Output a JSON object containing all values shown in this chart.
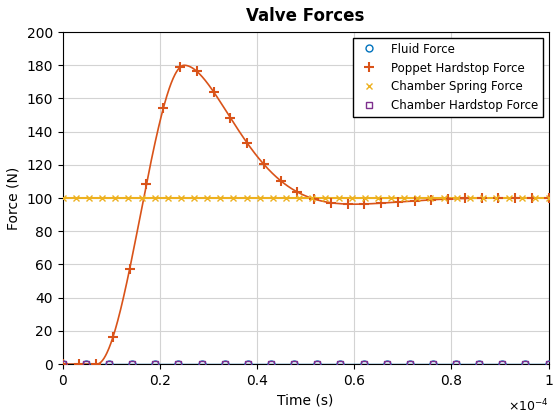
{
  "title": "Valve Forces",
  "xlabel": "Time (s)",
  "ylabel": "Force (N)",
  "xlim": [
    0,
    0.0001
  ],
  "ylim": [
    0,
    200
  ],
  "yticks": [
    0,
    20,
    40,
    60,
    80,
    100,
    120,
    140,
    160,
    180,
    200
  ],
  "xticks_scaled": [
    0,
    0.2,
    0.4,
    0.6,
    0.8,
    1.0
  ],
  "lines": [
    {
      "label": "Fluid Force",
      "color": "#0072BD",
      "linestyle": "-",
      "marker": "o",
      "markerfacecolor": "none",
      "markeredgecolor": "#0072BD",
      "markersize": 5,
      "linewidth": 1.0,
      "type": "flat",
      "value": 0.0,
      "n_markers": 22
    },
    {
      "label": "Poppet Hardstop Force",
      "color": "#D95319",
      "linestyle": "-",
      "marker": "+",
      "markerfacecolor": "#D95319",
      "markeredgecolor": "#D95319",
      "markersize": 7,
      "linewidth": 1.2,
      "type": "poppet",
      "n_markers": 30
    },
    {
      "label": "Chamber Spring Force",
      "color": "#EDB120",
      "linestyle": "-",
      "marker": "x",
      "markerfacecolor": "#EDB120",
      "markeredgecolor": "#EDB120",
      "markersize": 5,
      "linewidth": 1.5,
      "type": "flat",
      "value": 100.0,
      "n_markers": 38
    },
    {
      "label": "Chamber Hardstop Force",
      "color": "#7E2F8E",
      "linestyle": "none",
      "marker": "s",
      "markerfacecolor": "none",
      "markeredgecolor": "#7E2F8E",
      "markersize": 5,
      "linewidth": 1.0,
      "type": "flat",
      "value": 0.0,
      "n_markers": 22
    }
  ],
  "grid_color": "#D3D3D3",
  "background_color": "#FFFFFF",
  "legend_loc": "upper right"
}
